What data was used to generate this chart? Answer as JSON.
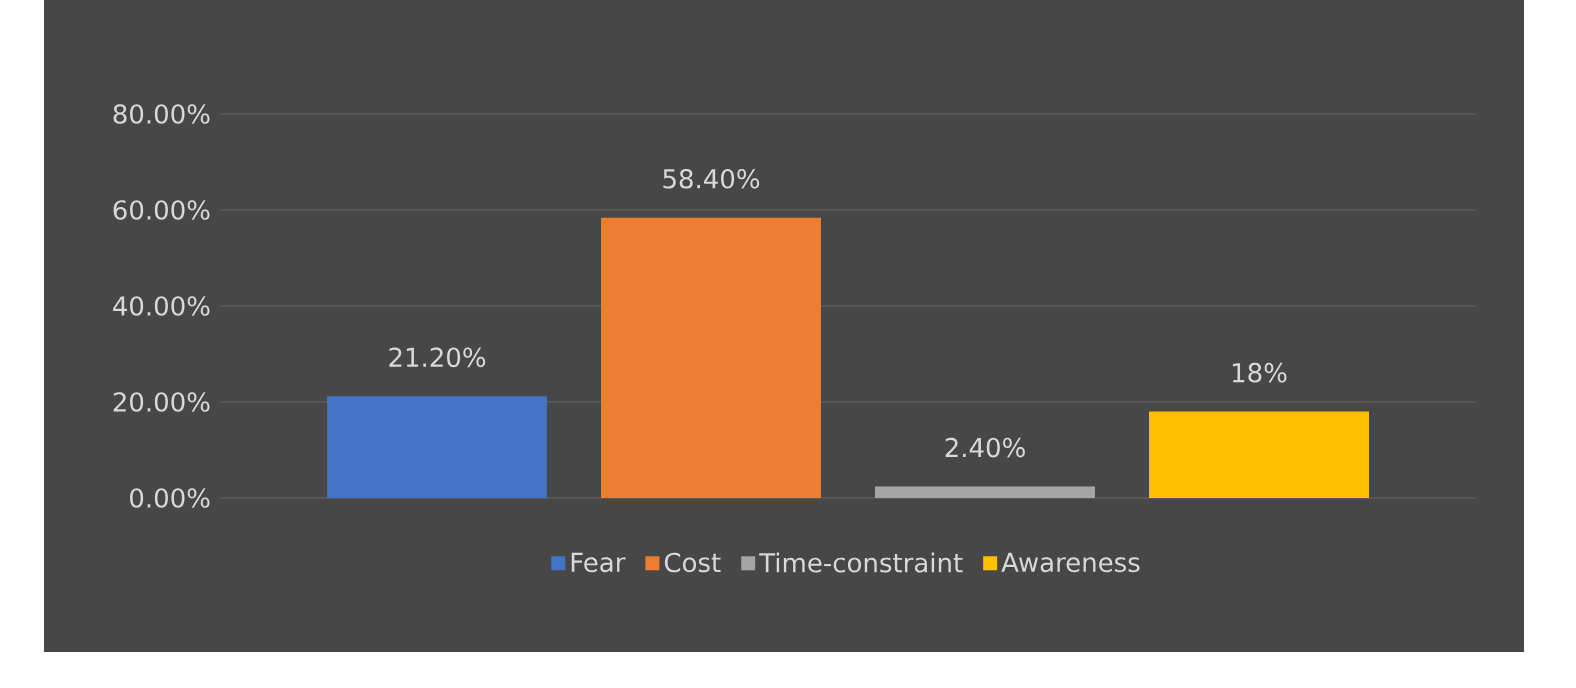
{
  "chart_data": {
    "type": "bar",
    "categories": [
      null
    ],
    "series": [
      {
        "name": "Fear",
        "color": "#4472c4",
        "values": [
          21.2
        ],
        "value_labels": [
          "21.20%"
        ]
      },
      {
        "name": "Cost",
        "color": "#ed7d31",
        "values": [
          58.4
        ],
        "value_labels": [
          "58.40%"
        ]
      },
      {
        "name": "Time-constraint",
        "color": "#a5a5a5",
        "values": [
          2.4
        ],
        "value_labels": [
          "2.40%"
        ]
      },
      {
        "name": "Awareness",
        "color": "#ffc000",
        "values": [
          18
        ],
        "value_labels": [
          "18%"
        ]
      }
    ],
    "ylim": [
      0,
      80
    ],
    "yticks": [
      {
        "value": 0,
        "label": "0.00%"
      },
      {
        "value": 20,
        "label": "20.00%"
      },
      {
        "value": 40,
        "label": "40.00%"
      },
      {
        "value": 60,
        "label": "60.00%"
      },
      {
        "value": 80,
        "label": "80.00%"
      }
    ],
    "grid": "y",
    "legend": "bottom"
  }
}
